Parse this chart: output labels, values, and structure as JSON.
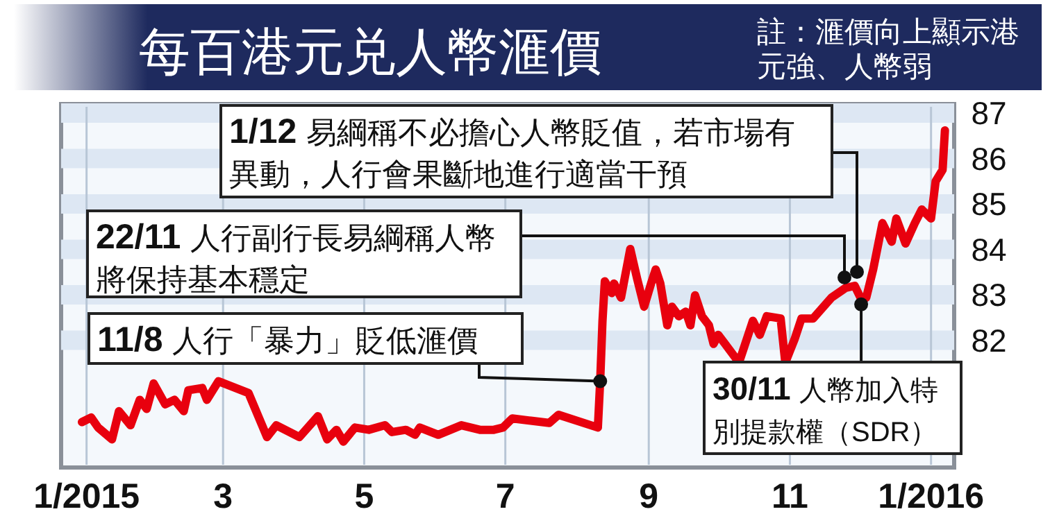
{
  "chart_data": {
    "type": "line",
    "title": "每百港元兑人幣滙價",
    "subtitle": "註：滙價向上顯示港元強、人幣弱",
    "x": [
      "2014-12-30",
      "2015-01-03",
      "2015-01-06",
      "2015-01-12",
      "2015-01-15",
      "2015-01-20",
      "2015-01-24",
      "2015-01-27",
      "2015-01-30",
      "2015-02-04",
      "2015-02-08",
      "2015-02-12",
      "2015-02-14",
      "2015-02-20",
      "2015-02-22",
      "2015-02-27",
      "2015-03-12",
      "2015-03-20",
      "2015-03-24",
      "2015-04-03",
      "2015-04-11",
      "2015-04-15",
      "2015-04-19",
      "2015-04-22",
      "2015-04-27",
      "2015-05-03",
      "2015-05-10",
      "2015-05-13",
      "2015-05-19",
      "2015-05-23",
      "2015-05-25",
      "2015-06-02",
      "2015-06-12",
      "2015-06-20",
      "2015-06-26",
      "2015-06-30",
      "2015-07-04",
      "2015-07-12",
      "2015-07-20",
      "2015-07-24",
      "2015-08-10",
      "2015-08-11",
      "2015-08-12",
      "2015-08-13",
      "2015-08-16",
      "2015-08-17",
      "2015-08-20",
      "2015-08-24",
      "2015-08-27",
      "2015-08-30",
      "2015-09-02",
      "2015-09-04",
      "2015-09-06",
      "2015-09-09",
      "2015-09-11",
      "2015-09-14",
      "2015-09-17",
      "2015-09-19",
      "2015-09-21",
      "2015-09-24",
      "2015-09-27",
      "2015-09-29",
      "2015-10-01",
      "2015-10-04",
      "2015-10-10",
      "2015-10-16",
      "2015-10-19",
      "2015-10-22",
      "2015-10-28",
      "2015-10-30",
      "2015-11-03",
      "2015-11-06",
      "2015-11-11",
      "2015-11-19",
      "2015-11-25",
      "2015-11-29",
      "2015-12-02",
      "2015-12-04",
      "2015-12-07",
      "2015-12-11",
      "2015-12-15",
      "2015-12-17",
      "2015-12-21",
      "2015-12-25",
      "2015-12-28",
      "2016-01-01",
      "2016-01-03",
      "2016-01-06",
      "2016-01-07"
    ],
    "series": [
      {
        "color": "#e8000e",
        "values": [
          80.2,
          80.3,
          80.08,
          79.82,
          80.44,
          80.13,
          80.69,
          80.49,
          81.05,
          80.59,
          80.69,
          80.44,
          80.9,
          80.95,
          80.69,
          81.1,
          80.84,
          79.87,
          80.13,
          79.87,
          80.33,
          79.82,
          80.03,
          79.77,
          80.08,
          80.03,
          80.13,
          79.98,
          80.03,
          79.92,
          80.08,
          79.92,
          80.13,
          80.03,
          80.03,
          80.08,
          80.28,
          80.23,
          80.18,
          80.36,
          80.08,
          81.1,
          82.43,
          83.3,
          83.04,
          83.25,
          82.94,
          84.01,
          83.35,
          82.74,
          83.25,
          83.56,
          83.25,
          82.33,
          82.74,
          82.53,
          82.63,
          82.33,
          82.99,
          82.53,
          82.33,
          81.92,
          82.12,
          81.92,
          81.51,
          82.43,
          82.12,
          82.53,
          82.48,
          81.51,
          82.02,
          82.48,
          82.48,
          82.94,
          83.15,
          83.2,
          82.89,
          82.94,
          83.56,
          84.58,
          84.17,
          84.68,
          84.13,
          84.58,
          84.88,
          84.68,
          85.5,
          85.75,
          86.62
        ]
      }
    ],
    "xlim": [
      "2014-12-21",
      "2016-01-11"
    ],
    "xticks": [
      {
        "value": "2015-01-01",
        "label": "1/2015"
      },
      {
        "value": "2015-03-01",
        "label": "3"
      },
      {
        "value": "2015-05-01",
        "label": "5"
      },
      {
        "value": "2015-07-01",
        "label": "7"
      },
      {
        "value": "2015-09-01",
        "label": "9"
      },
      {
        "value": "2015-11-01",
        "label": "11"
      },
      {
        "value": "2016-01-01",
        "label": "1/2016"
      }
    ],
    "ylim": [
      79.2,
      87.2
    ],
    "yticks": [
      82,
      83,
      84,
      85,
      86,
      87
    ],
    "grid": true,
    "annotations": [
      {
        "text": "11/8 人行「暴力」貶低滙價",
        "x": "2015-08-11",
        "y": 81.1
      },
      "22/11 人行副行長易綱稱人幣將保持基本穩定",
      "1/12 易綱稱不必擔心人幣貶值，若市場有異動，人行會果斷地進行適當干預",
      {
        "text": "30/11 人幣加入特別提款權（SDR）",
        "x": "2015-11-30",
        "y": 82.79
      }
    ]
  }
}
